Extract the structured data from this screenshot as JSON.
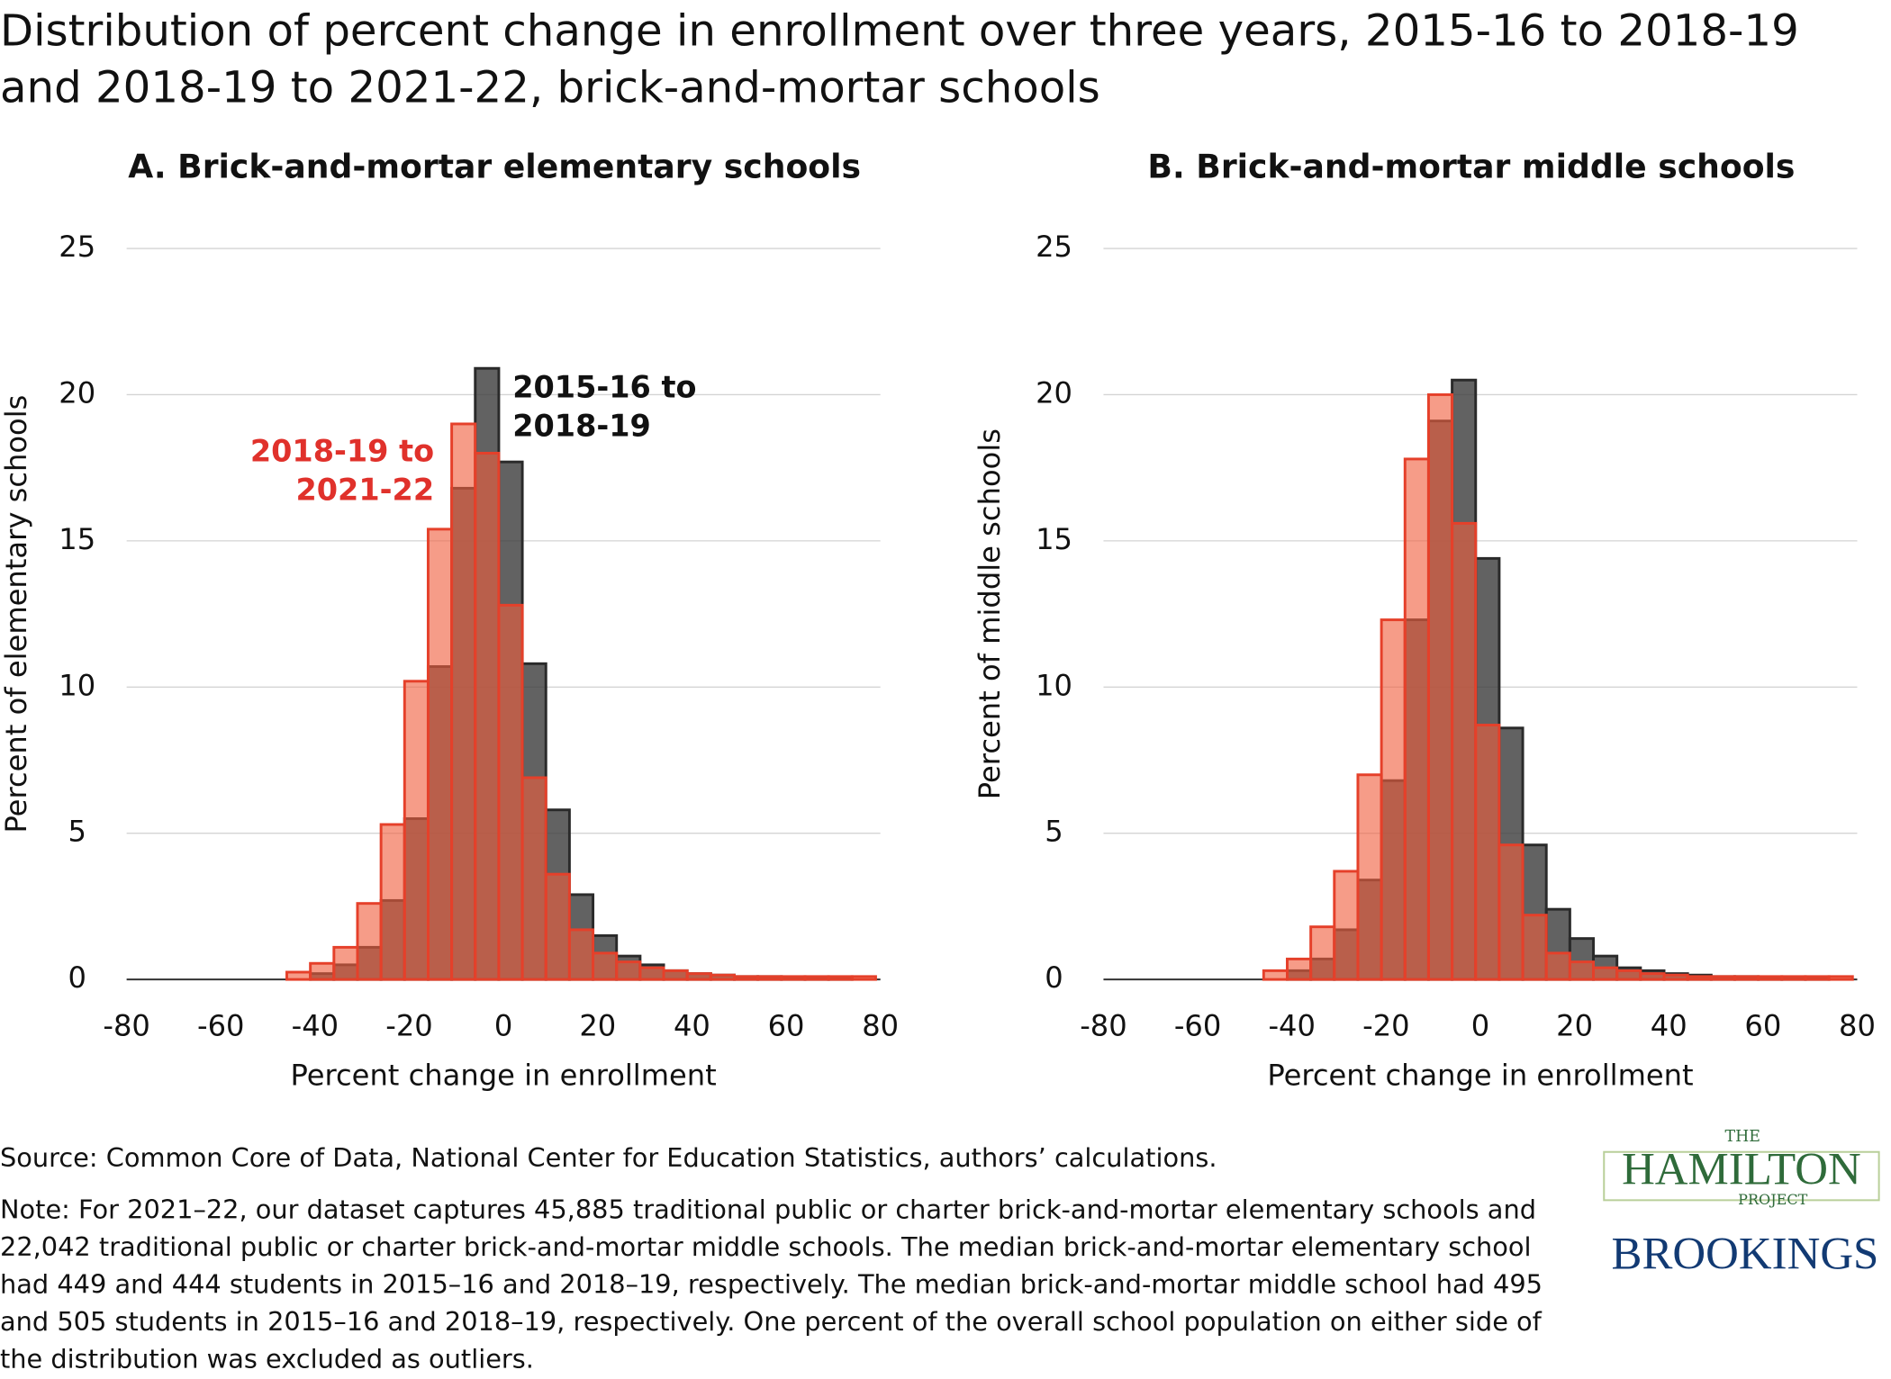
{
  "title": "Distribution of percent change in enrollment over three years, 2015-16 to 2018-19 and 2018-19 to 2021-22, brick-and-mortar schools",
  "chart_data": [
    {
      "type": "histogram",
      "title": "A.  Brick-and-mortar elementary schools",
      "x_label": "Percent change in enrollment",
      "y_label": "Percent of elementary schools",
      "bins": [
        -46,
        -41,
        -36,
        -31,
        -26,
        -21,
        -16,
        -11,
        -6,
        -1,
        4,
        9,
        14,
        19,
        24,
        29,
        34,
        39,
        44,
        49,
        54,
        59,
        64,
        69,
        74,
        79
      ],
      "series": [
        {
          "name": "2015-16 to 2018-19",
          "color": "#404040",
          "values": [
            0,
            0.2,
            0.5,
            1.1,
            2.7,
            5.5,
            10.7,
            16.8,
            20.9,
            17.7,
            10.8,
            5.8,
            2.9,
            1.5,
            0.8,
            0.5,
            0.3,
            0.2,
            0.15,
            0.1,
            0.1,
            0.05,
            0.05,
            0.05,
            0
          ]
        },
        {
          "name": "2018-19 to 2021-22",
          "color": "#f0603f",
          "values": [
            0.25,
            0.55,
            1.1,
            2.6,
            5.3,
            10.2,
            15.4,
            19.0,
            18.0,
            12.8,
            6.9,
            3.6,
            1.7,
            0.9,
            0.6,
            0.4,
            0.3,
            0.2,
            0.15,
            0.1,
            0.1,
            0.1,
            0.1,
            0.1,
            0.1
          ]
        }
      ],
      "xlim": [
        -80,
        80
      ],
      "xticks": [
        -80,
        -60,
        -40,
        -20,
        0,
        20,
        40,
        60,
        80
      ],
      "ylim": [
        0,
        25
      ],
      "yticks": [
        0,
        5,
        10,
        15,
        20,
        25
      ],
      "grid": true,
      "legend": true
    },
    {
      "type": "histogram",
      "title": "B. Brick-and-mortar middle schools",
      "x_label": "Percent change in enrollment",
      "y_label": "Percent of middle schools",
      "bins": [
        -46,
        -41,
        -36,
        -31,
        -26,
        -21,
        -16,
        -11,
        -6,
        -1,
        4,
        9,
        14,
        19,
        24,
        29,
        34,
        39,
        44,
        49,
        54,
        59,
        64,
        69,
        74,
        79
      ],
      "series": [
        {
          "name": "2015-16 to 2018-19",
          "color": "#404040",
          "values": [
            0,
            0.3,
            0.7,
            1.7,
            3.4,
            6.8,
            12.3,
            19.1,
            20.5,
            14.4,
            8.6,
            4.6,
            2.4,
            1.4,
            0.8,
            0.4,
            0.3,
            0.2,
            0.15,
            0.1,
            0.1,
            0.05,
            0.05,
            0.05,
            0
          ]
        },
        {
          "name": "2018-19 to 2021-22",
          "color": "#f0603f",
          "values": [
            0.3,
            0.7,
            1.8,
            3.7,
            7.0,
            12.3,
            17.8,
            20.0,
            15.6,
            8.7,
            4.6,
            2.2,
            0.9,
            0.6,
            0.4,
            0.3,
            0.2,
            0.15,
            0.1,
            0.1,
            0.1,
            0.1,
            0.1,
            0.1,
            0.1
          ]
        }
      ],
      "xlim": [
        -80,
        80
      ],
      "xticks": [
        -80,
        -60,
        -40,
        -20,
        0,
        20,
        40,
        60,
        80
      ],
      "ylim": [
        0,
        25
      ],
      "yticks": [
        0,
        5,
        10,
        15,
        20,
        25
      ],
      "grid": true,
      "legend": false
    }
  ],
  "source": "Source: Common Core of Data, National Center for Education Statistics, authors’ calculations.",
  "note": "Note: For 2021–22, our dataset captures 45,885 traditional public or charter brick-and-mortar elementary schools and 22,042 traditional public or charter brick-and-mortar middle schools. The median brick-and-mortar elementary school had 449 and 444 students in 2015–16 and 2018–19, respectively. The median brick-and-mortar middle school had 495 and 505 students in 2015–16 and 2018–19, respectively. One percent of the overall school population on either side of the distribution was excluded as outliers.",
  "logos": {
    "the": "THE",
    "hamilton": "HAMILTON",
    "project": "PROJECT",
    "brookings": "BROOKINGS"
  }
}
